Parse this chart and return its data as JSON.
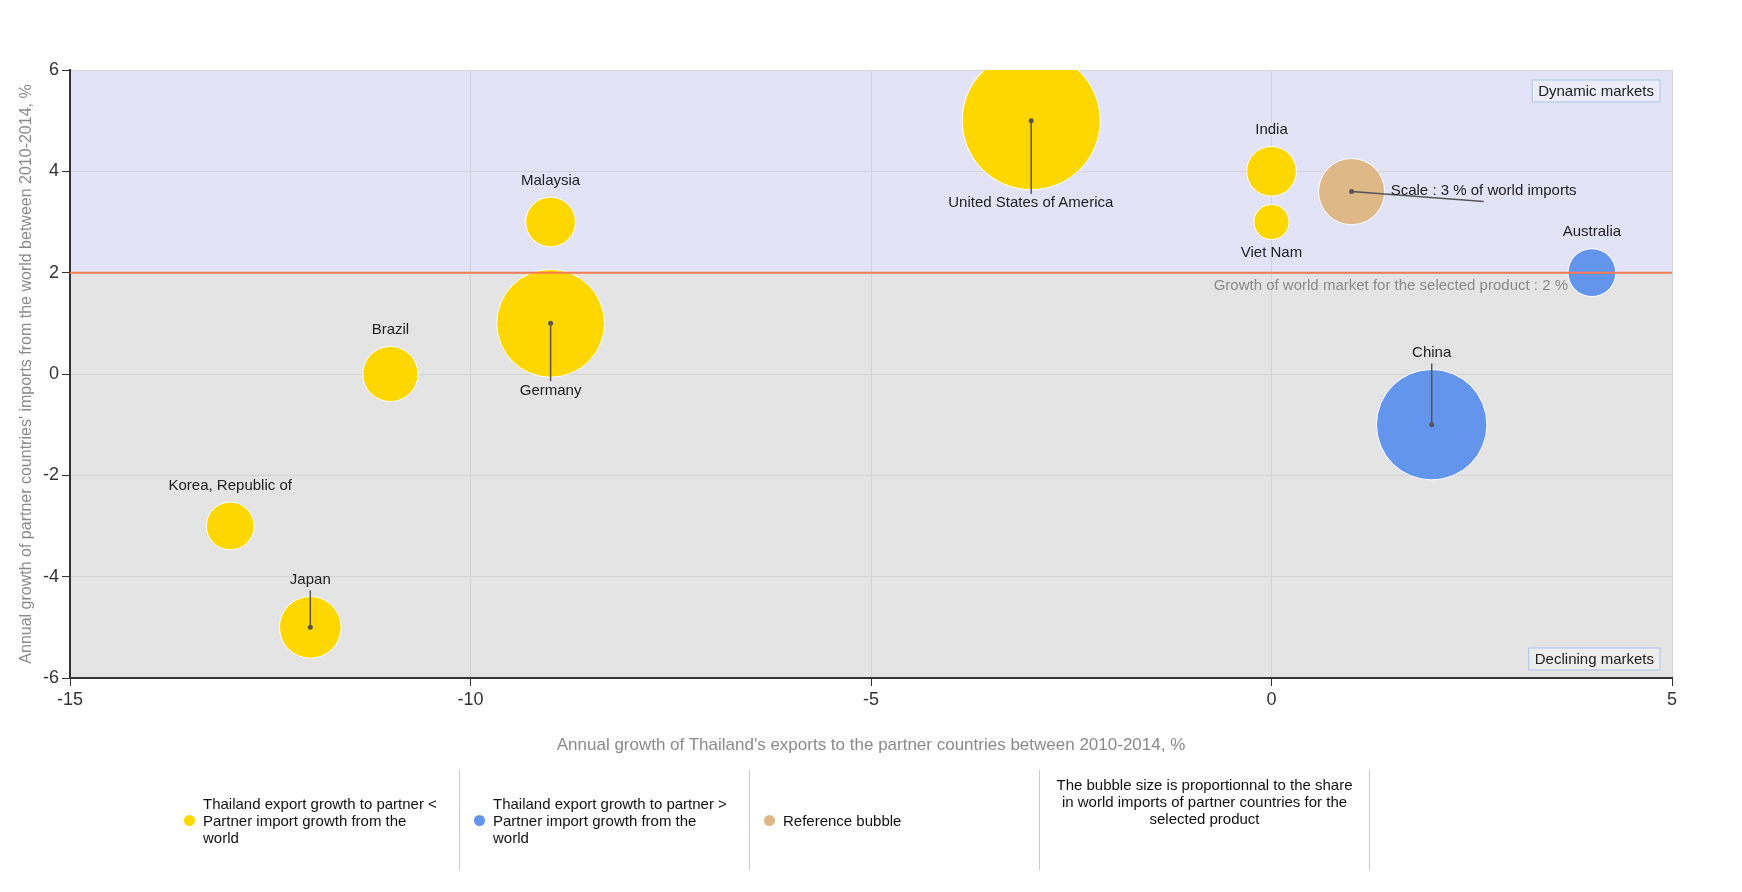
{
  "chart_data": {
    "type": "bubble",
    "xlabel": "Annual growth of Thailand's exports to the partner countries between 2010-2014, %",
    "ylabel": "Annual growth of partner countries' imports from the world between 2010-2014, %",
    "xlim": [
      -15,
      5
    ],
    "xticks": [
      -15,
      -10,
      -5,
      0,
      5
    ],
    "ylim": [
      -6,
      6
    ],
    "yticks": [
      -6,
      -4,
      -2,
      0,
      2,
      4,
      6
    ],
    "grid": true,
    "legend": "bottom",
    "series": [
      {
        "name": "Thailand export growth to partner < Partner import growth from the world",
        "color": "#ffd700",
        "x": [
          -3,
          -9,
          -9,
          -11,
          -13,
          -12,
          0,
          0
        ],
        "values": [
          5,
          1,
          3,
          0,
          -3,
          -5,
          4,
          3
        ],
        "sizes": [
          1,
          0.61,
          0.13,
          0.16,
          0.12,
          0.2,
          0.13,
          0.065
        ]
      },
      {
        "name": "Thailand export growth to partner > Partner import growth from the world",
        "color": "#6495ed",
        "x": [
          2,
          4
        ],
        "values": [
          -1,
          2
        ],
        "sizes": [
          0.64,
          0.12
        ]
      },
      {
        "name": "Reference bubble",
        "color": "#deb887",
        "x": [
          1
        ],
        "values": [
          3.6
        ],
        "sizes": [
          0.23
        ]
      }
    ],
    "ref_lines": [
      {
        "axis": "y",
        "value": 2,
        "label": "Growth of world market for the selected product : 2 %",
        "color": "#f47a50"
      }
    ],
    "bands": [
      {
        "axis": "y",
        "from": 2,
        "to": 6,
        "label": "Dynamic markets",
        "color": "#e3e3f7"
      },
      {
        "axis": "y",
        "from": -6,
        "to": 2,
        "label": "Declining markets",
        "color": "#e4e4e4"
      }
    ],
    "annotations": [
      {
        "text": "United States of America",
        "x": -3,
        "y": 5
      },
      {
        "text": "Germany",
        "x": -9,
        "y": 1
      },
      {
        "text": "Malaysia",
        "x": -9,
        "y": 3
      },
      {
        "text": "Brazil",
        "x": -11,
        "y": 0
      },
      {
        "text": "Korea, Republic of",
        "x": -13,
        "y": -3
      },
      {
        "text": "Japan",
        "x": -12,
        "y": -5
      },
      {
        "text": "India",
        "x": 0,
        "y": 4
      },
      {
        "text": "Viet Nam",
        "x": 0,
        "y": 3
      },
      {
        "text": "China",
        "x": 2,
        "y": -1
      },
      {
        "text": "Australia",
        "x": 4,
        "y": 2
      },
      {
        "text": "Scale : 3 % of world imports",
        "x": 1,
        "y": 3.6
      },
      "The bubble size is proportionnal to the share in world imports of partner countries for the selected product"
    ]
  }
}
